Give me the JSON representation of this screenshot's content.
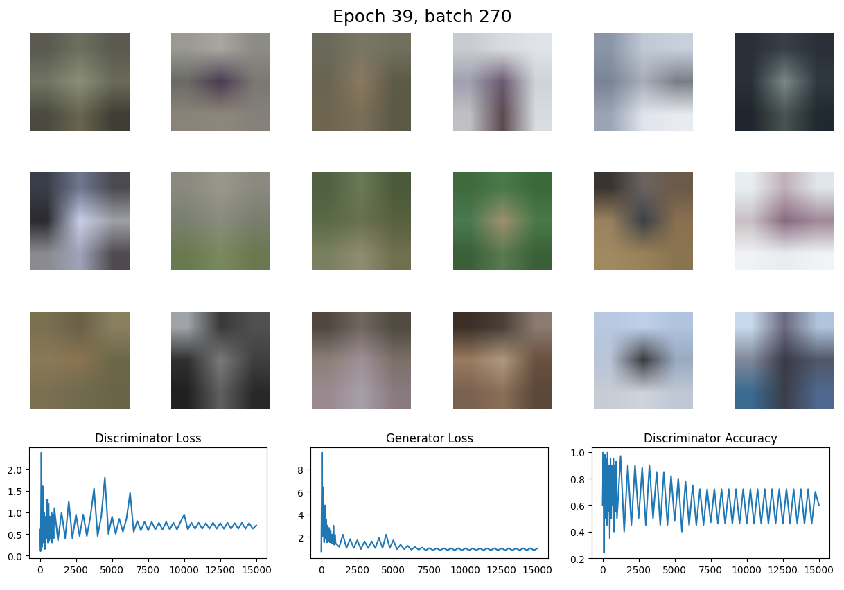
{
  "title": "Epoch 39, batch 270",
  "images": [
    {
      "pixels": [
        [
          "#5a5a50",
          "#6d7060",
          "#5a5a4f"
        ],
        [
          "#707563",
          "#8a9078",
          "#6a6b5a"
        ],
        [
          "#4a4a40",
          "#6a6550",
          "#3f3e35"
        ]
      ]
    },
    {
      "pixels": [
        [
          "#9a9a92",
          "#a8a8a0",
          "#8c8c84"
        ],
        [
          "#6a6a66",
          "#4a3a50",
          "#7a7872"
        ],
        [
          "#8a8478",
          "#8e887c",
          "#86807a"
        ]
      ]
    },
    {
      "pixels": [
        [
          "#6a6a5a",
          "#7a7664",
          "#70705e"
        ],
        [
          "#6a6450",
          "#8a7a60",
          "#5e5a48"
        ],
        [
          "#6e6650",
          "#7a7058",
          "#5c5846"
        ]
      ]
    },
    {
      "pixels": [
        [
          "#c8ccd0",
          "#d8dce0",
          "#e0e4e8"
        ],
        [
          "#a0a0b0",
          "#6a5a70",
          "#d0d4d8"
        ],
        [
          "#c0c0c4",
          "#5a4a50",
          "#d8dce0"
        ]
      ]
    },
    {
      "pixels": [
        [
          "#8a96a8",
          "#c0c8d4",
          "#c8d0dc"
        ],
        [
          "#7a8496",
          "#a8aeb8",
          "#7a7e88"
        ],
        [
          "#9aa4b4",
          "#e0e4ec",
          "#e8ecf0"
        ]
      ]
    },
    {
      "pixels": [
        [
          "#2a3038",
          "#3a4048",
          "#2a3038"
        ],
        [
          "#2a3038",
          "#7a8a88",
          "#303840"
        ],
        [
          "#20262e",
          "#4a5450",
          "#202830"
        ]
      ]
    },
    {
      "pixels": [
        [
          "#3a3e48",
          "#707890",
          "#4a4a50"
        ],
        [
          "#2a2a30",
          "#c8d0e8",
          "#a0a0a8"
        ],
        [
          "#8a8a90",
          "#a0a4b8",
          "#504a50"
        ]
      ]
    },
    {
      "pixels": [
        [
          "#8a8a80",
          "#98988c",
          "#8a8a80"
        ],
        [
          "#7a8070",
          "#8a8c7c",
          "#7a7e6e"
        ],
        [
          "#6a7a50",
          "#7a8a60",
          "#6a7850"
        ]
      ]
    },
    {
      "pixels": [
        [
          "#506040",
          "#6a7a58",
          "#4a5a3a"
        ],
        [
          "#5a6a48",
          "#6a7050",
          "#5a6040"
        ],
        [
          "#7a8060",
          "#908c70",
          "#707050"
        ]
      ]
    },
    {
      "pixels": [
        [
          "#3e6a3e",
          "#4a7a4a",
          "#3a6a3a"
        ],
        [
          "#4a7a50",
          "#a09070",
          "#4a7a48"
        ],
        [
          "#3a6038",
          "#5a7a50",
          "#3a6038"
        ]
      ]
    },
    {
      "pixels": [
        [
          "#3a3430",
          "#6a6460",
          "#6a5a48"
        ],
        [
          "#9a8260",
          "#3a4048",
          "#8a7050"
        ],
        [
          "#a08a60",
          "#9a8258",
          "#8a7450"
        ]
      ]
    },
    {
      "pixels": [
        [
          "#e8eef2",
          "#c0b0b8",
          "#e0e6ec"
        ],
        [
          "#c8c0c4",
          "#8a6a80",
          "#a08898"
        ],
        [
          "#f0f2f4",
          "#e8ecf0",
          "#f0f4f6"
        ]
      ]
    },
    {
      "pixels": [
        [
          "#7a7050",
          "#6a6048",
          "#8a8060"
        ],
        [
          "#8a7a58",
          "#8a7450",
          "#6a6848"
        ],
        [
          "#7a7050",
          "#706a50",
          "#6a6448"
        ]
      ]
    },
    {
      "pixels": [
        [
          "#a0a4a8",
          "#3a3a3a",
          "#505050"
        ],
        [
          "#303030",
          "#7a7a7a",
          "#404040"
        ],
        [
          "#202020",
          "#606060",
          "#282828"
        ]
      ]
    },
    {
      "pixels": [
        [
          "#504840",
          "#706860",
          "#504a40"
        ],
        [
          "#8a8078",
          "#a09098",
          "#7a7068"
        ],
        [
          "#9a8a90",
          "#a8a0a8",
          "#8a7a80"
        ]
      ]
    },
    {
      "pixels": [
        [
          "#3a3028",
          "#4a4038",
          "#8a7a70"
        ],
        [
          "#9a7a60",
          "#b09a80",
          "#6a5040"
        ],
        [
          "#7a6050",
          "#8a7058",
          "#5a4838"
        ]
      ]
    },
    {
      "pixels": [
        [
          "#b8c8e0",
          "#c0d0e8",
          "#b0c4e0"
        ],
        [
          "#b8c4d8",
          "#3a3a40",
          "#9aaac0"
        ],
        [
          "#c8ccd4",
          "#d0d4dc",
          "#c0c8d4"
        ]
      ]
    },
    {
      "pixels": [
        [
          "#c8d8ec",
          "#6a6a80",
          "#b0c4dc"
        ],
        [
          "#80889a",
          "#3a3a48",
          "#505868"
        ],
        [
          "#3a6a90",
          "#3a3e4a",
          "#506890"
        ]
      ]
    }
  ],
  "chart_data": [
    {
      "type": "line",
      "title": "Discriminator Loss",
      "x": [
        0,
        50,
        100,
        150,
        200,
        250,
        300,
        350,
        400,
        450,
        500,
        550,
        600,
        650,
        700,
        750,
        800,
        850,
        900,
        950,
        1000,
        1250,
        1500,
        1750,
        2000,
        2250,
        2500,
        2750,
        3000,
        3250,
        3500,
        3750,
        4000,
        4250,
        4500,
        4750,
        5000,
        5250,
        5500,
        5750,
        6000,
        6250,
        6500,
        6750,
        7000,
        7250,
        7500,
        7750,
        8000,
        8250,
        8500,
        8750,
        9000,
        9250,
        9500,
        9750,
        10000,
        10250,
        10500,
        10750,
        11000,
        11250,
        11500,
        11750,
        12000,
        12250,
        12500,
        12750,
        13000,
        13250,
        13500,
        13750,
        14000,
        14250,
        14500,
        14750,
        15000
      ],
      "series": [
        {
          "color": "#1f77b4",
          "values": [
            0.6,
            0.1,
            2.38,
            0.2,
            1.6,
            0.3,
            1.0,
            0.15,
            0.9,
            0.4,
            1.3,
            0.3,
            1.2,
            0.35,
            0.9,
            0.4,
            1.0,
            0.3,
            0.95,
            0.4,
            1.1,
            0.35,
            1.0,
            0.4,
            1.25,
            0.4,
            0.95,
            0.45,
            0.95,
            0.45,
            0.9,
            1.55,
            0.45,
            0.9,
            1.8,
            0.5,
            0.9,
            0.5,
            0.85,
            0.55,
            0.85,
            1.45,
            0.55,
            0.8,
            0.58,
            0.78,
            0.58,
            0.78,
            0.6,
            0.76,
            0.6,
            0.78,
            0.6,
            0.76,
            0.6,
            0.78,
            0.95,
            0.6,
            0.76,
            0.62,
            0.76,
            0.62,
            0.75,
            0.62,
            0.76,
            0.62,
            0.75,
            0.62,
            0.76,
            0.62,
            0.75,
            0.62,
            0.76,
            0.62,
            0.75,
            0.62,
            0.7
          ]
        }
      ],
      "xlim": [
        -750,
        15750
      ],
      "xticks": [
        0,
        2500,
        5000,
        7500,
        10000,
        12500,
        15000
      ],
      "ylim": [
        -0.06,
        2.5
      ],
      "yticks": [
        {
          "value": 0,
          "label": "0.0"
        },
        0.5,
        {
          "value": 1,
          "label": "1.0"
        },
        1.5,
        {
          "value": 2,
          "label": "2.0"
        }
      ]
    },
    {
      "type": "line",
      "title": "Generator Loss",
      "x": [
        0,
        50,
        100,
        150,
        200,
        250,
        300,
        350,
        400,
        450,
        500,
        550,
        600,
        650,
        700,
        750,
        800,
        850,
        900,
        950,
        1000,
        1250,
        1500,
        1750,
        2000,
        2250,
        2500,
        2750,
        3000,
        3250,
        3500,
        3750,
        4000,
        4250,
        4500,
        4750,
        5000,
        5250,
        5500,
        5750,
        6000,
        6250,
        6500,
        6750,
        7000,
        7250,
        7500,
        7750,
        8000,
        8250,
        8500,
        8750,
        9000,
        9250,
        9500,
        9750,
        10000,
        10250,
        10500,
        10750,
        11000,
        11250,
        11500,
        11750,
        12000,
        12250,
        12500,
        12750,
        13000,
        13250,
        13500,
        13750,
        14000,
        14250,
        14500,
        14750,
        15000
      ],
      "series": [
        {
          "color": "#1f77b4",
          "values": [
            0.7,
            9.5,
            2.0,
            6.4,
            1.5,
            4.8,
            1.8,
            3.5,
            1.5,
            3.0,
            1.6,
            2.8,
            1.5,
            2.5,
            1.4,
            2.2,
            1.4,
            3.0,
            1.3,
            2.2,
            1.4,
            1.1,
            2.2,
            1.0,
            1.8,
            1.0,
            1.7,
            0.9,
            1.6,
            1.0,
            1.6,
            1.0,
            1.9,
            1.0,
            2.2,
            1.0,
            1.7,
            0.9,
            1.3,
            0.9,
            1.2,
            0.85,
            1.1,
            0.85,
            1.05,
            0.8,
            1.0,
            0.8,
            0.98,
            0.8,
            0.98,
            0.8,
            0.98,
            0.8,
            0.98,
            0.8,
            0.98,
            0.8,
            0.98,
            0.8,
            0.98,
            0.8,
            0.98,
            0.8,
            0.98,
            0.8,
            0.98,
            0.8,
            0.98,
            0.8,
            0.98,
            0.8,
            0.98,
            0.8,
            0.98,
            0.8,
            0.98
          ]
        }
      ],
      "xlim": [
        -750,
        15750
      ],
      "xticks": [
        0,
        2500,
        5000,
        7500,
        10000,
        12500,
        15000
      ],
      "ylim": [
        0.1,
        9.95
      ],
      "yticks": [
        2,
        4,
        6,
        8
      ]
    },
    {
      "type": "line",
      "title": "Discriminator Accuracy",
      "x": [
        0,
        50,
        100,
        150,
        200,
        250,
        300,
        350,
        400,
        450,
        500,
        550,
        600,
        650,
        700,
        750,
        800,
        850,
        900,
        950,
        1000,
        1250,
        1500,
        1750,
        2000,
        2250,
        2500,
        2750,
        3000,
        3250,
        3500,
        3750,
        4000,
        4250,
        4500,
        4750,
        5000,
        5250,
        5500,
        5750,
        6000,
        6250,
        6500,
        6750,
        7000,
        7250,
        7500,
        7750,
        8000,
        8250,
        8500,
        8750,
        9000,
        9250,
        9500,
        9750,
        10000,
        10250,
        10500,
        10750,
        11000,
        11250,
        11500,
        11750,
        12000,
        12250,
        12500,
        12750,
        13000,
        13250,
        13500,
        13750,
        14000,
        14250,
        14500,
        14750,
        15000
      ],
      "series": [
        {
          "color": "#1f77b4",
          "values": [
            0.6,
            1.0,
            0.24,
            0.98,
            0.5,
            0.95,
            0.45,
            1.0,
            0.55,
            0.9,
            0.35,
            0.95,
            0.5,
            0.9,
            0.6,
            0.95,
            0.4,
            0.9,
            0.55,
            0.93,
            0.5,
            0.97,
            0.4,
            0.9,
            0.45,
            0.9,
            0.5,
            0.88,
            0.45,
            0.9,
            0.5,
            0.85,
            0.45,
            0.85,
            0.45,
            0.82,
            0.48,
            0.8,
            0.4,
            0.78,
            0.45,
            0.75,
            0.45,
            0.72,
            0.45,
            0.72,
            0.47,
            0.72,
            0.46,
            0.72,
            0.46,
            0.72,
            0.46,
            0.72,
            0.46,
            0.72,
            0.46,
            0.72,
            0.46,
            0.72,
            0.46,
            0.72,
            0.46,
            0.72,
            0.46,
            0.72,
            0.46,
            0.72,
            0.46,
            0.72,
            0.46,
            0.72,
            0.46,
            0.72,
            0.46,
            0.7,
            0.6
          ]
        }
      ],
      "xlim": [
        -750,
        15750
      ],
      "xticks": [
        0,
        2500,
        5000,
        7500,
        10000,
        12500,
        15000
      ],
      "ylim": [
        0.2,
        1.035
      ],
      "yticks": [
        0.2,
        0.4,
        0.6,
        0.8,
        {
          "value": 1,
          "label": "1.0"
        }
      ]
    }
  ]
}
